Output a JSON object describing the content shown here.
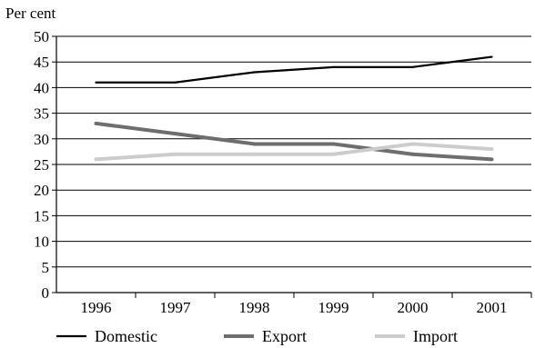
{
  "chart_data": {
    "type": "line",
    "ylabel": "Per cent",
    "xlabel": "",
    "categories": [
      "1996",
      "1997",
      "1998",
      "1999",
      "2000",
      "2001"
    ],
    "ylim": [
      0,
      50
    ],
    "yticks": [
      0,
      5,
      10,
      15,
      20,
      25,
      30,
      35,
      40,
      45,
      50
    ],
    "grid": "horizontal",
    "legend_position": "bottom",
    "series": [
      {
        "name": "Domestic",
        "values": [
          41,
          41,
          43,
          44,
          44,
          46
        ],
        "color": "#000000"
      },
      {
        "name": "Export",
        "values": [
          33,
          31,
          29,
          29,
          27,
          26
        ],
        "color": "#6e6e6e"
      },
      {
        "name": "Import",
        "values": [
          26,
          27,
          27,
          27,
          29,
          28
        ],
        "color": "#cccccc"
      }
    ]
  }
}
